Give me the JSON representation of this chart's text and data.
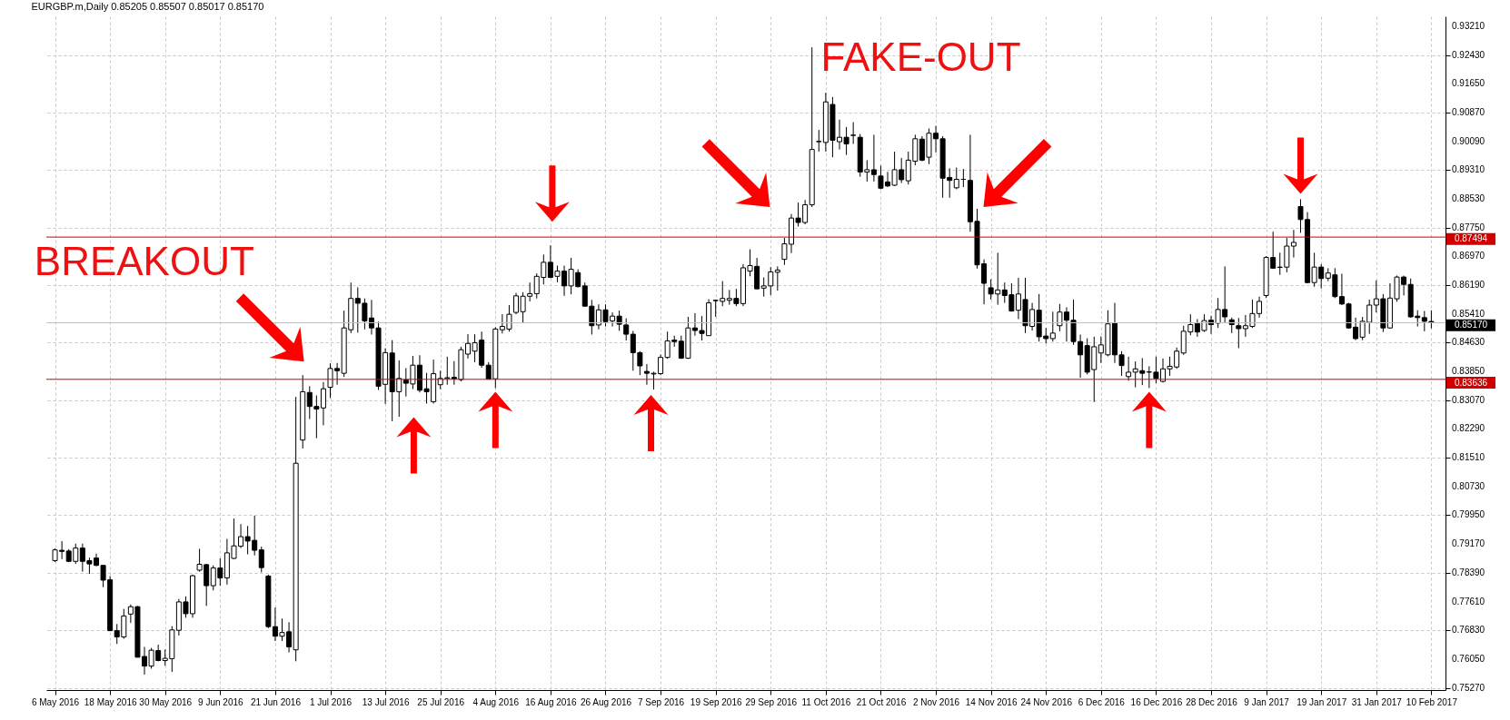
{
  "chart_data": {
    "type": "candlestick",
    "title": "EURGBP.m,Daily  0.85205 0.85507 0.85017 0.85170",
    "categories": [
      "6 May 2016",
      null,
      null,
      null,
      null,
      null,
      null,
      null,
      "18 May 2016",
      null,
      null,
      null,
      null,
      null,
      null,
      null,
      "30 May 2016",
      null,
      null,
      null,
      null,
      null,
      null,
      null,
      "9 Jun 2016",
      null,
      null,
      null,
      null,
      null,
      null,
      null,
      "21 Jun 2016",
      null,
      null,
      null,
      null,
      null,
      null,
      null,
      "1 Jul 2016",
      null,
      null,
      null,
      null,
      null,
      null,
      null,
      "13 Jul 2016",
      null,
      null,
      null,
      null,
      null,
      null,
      null,
      "25 Jul 2016",
      null,
      null,
      null,
      null,
      null,
      null,
      null,
      "4 Aug 2016",
      null,
      null,
      null,
      null,
      null,
      null,
      null,
      "16 Aug 2016",
      null,
      null,
      null,
      null,
      null,
      null,
      null,
      "26 Aug 2016",
      null,
      null,
      null,
      null,
      null,
      null,
      null,
      "7 Sep 2016",
      null,
      null,
      null,
      null,
      null,
      null,
      null,
      "19 Sep 2016",
      null,
      null,
      null,
      null,
      null,
      null,
      null,
      "29 Sep 2016",
      null,
      null,
      null,
      null,
      null,
      null,
      null,
      "11 Oct 2016",
      null,
      null,
      null,
      null,
      null,
      null,
      null,
      "21 Oct 2016",
      null,
      null,
      null,
      null,
      null,
      null,
      null,
      "2 Nov 2016",
      null,
      null,
      null,
      null,
      null,
      null,
      null,
      "14 Nov 2016",
      null,
      null,
      null,
      null,
      null,
      null,
      null,
      "24 Nov 2016",
      null,
      null,
      null,
      null,
      null,
      null,
      null,
      "6 Dec 2016",
      null,
      null,
      null,
      null,
      null,
      null,
      null,
      "16 Dec 2016",
      null,
      null,
      null,
      null,
      null,
      null,
      null,
      "28 Dec 2016",
      null,
      null,
      null,
      null,
      null,
      null,
      null,
      "9 Jan 2017",
      null,
      null,
      null,
      null,
      null,
      null,
      null,
      "19 Jan 2017",
      null,
      null,
      null,
      null,
      null,
      null,
      null,
      "31 Jan 2017",
      null,
      null,
      null,
      null,
      null,
      null,
      null,
      "10 Feb 2017"
    ],
    "ohlc": [
      [
        0.7872,
        0.7905,
        0.7868,
        0.7901
      ],
      [
        0.79,
        0.7925,
        0.7876,
        0.7897
      ],
      [
        0.7898,
        0.7903,
        0.7868,
        0.787
      ],
      [
        0.787,
        0.7918,
        0.7863,
        0.7906
      ],
      [
        0.7906,
        0.7918,
        0.7842,
        0.787
      ],
      [
        0.7872,
        0.788,
        0.7836,
        0.7863
      ],
      [
        0.7879,
        0.7891,
        0.7857,
        0.7859
      ],
      [
        0.7859,
        0.7859,
        0.78,
        0.7819
      ],
      [
        0.782,
        0.783,
        0.7681,
        0.7682
      ],
      [
        0.7682,
        0.77,
        0.7646,
        0.7665
      ],
      [
        0.7665,
        0.7741,
        0.766,
        0.7722
      ],
      [
        0.7727,
        0.7753,
        0.7703,
        0.7747
      ],
      [
        0.7747,
        0.7749,
        0.761,
        0.761
      ],
      [
        0.7612,
        0.7638,
        0.7563,
        0.7586
      ],
      [
        0.7586,
        0.7635,
        0.7579,
        0.7629
      ],
      [
        0.7628,
        0.7644,
        0.7599,
        0.7601
      ],
      [
        0.7601,
        0.7631,
        0.7587,
        0.7607
      ],
      [
        0.7606,
        0.7694,
        0.757,
        0.7684
      ],
      [
        0.7683,
        0.7768,
        0.7669,
        0.776
      ],
      [
        0.776,
        0.7775,
        0.7717,
        0.7728
      ],
      [
        0.7728,
        0.7834,
        0.7717,
        0.7831
      ],
      [
        0.7846,
        0.7904,
        0.7842,
        0.7862
      ],
      [
        0.7861,
        0.7863,
        0.7749,
        0.7804
      ],
      [
        0.7804,
        0.7859,
        0.7791,
        0.7852
      ],
      [
        0.7852,
        0.7878,
        0.7804,
        0.7825
      ],
      [
        0.7825,
        0.7931,
        0.7807,
        0.7893
      ],
      [
        0.7878,
        0.7986,
        0.7876,
        0.7912
      ],
      [
        0.7911,
        0.7971,
        0.7906,
        0.7937
      ],
      [
        0.7937,
        0.7966,
        0.7889,
        0.7925
      ],
      [
        0.7927,
        0.7994,
        0.7886,
        0.79
      ],
      [
        0.7901,
        0.791,
        0.784,
        0.7853
      ],
      [
        0.783,
        0.7834,
        0.7689,
        0.7693
      ],
      [
        0.7693,
        0.7745,
        0.7654,
        0.7667
      ],
      [
        0.7667,
        0.7715,
        0.7654,
        0.7677
      ],
      [
        0.7679,
        0.7705,
        0.7623,
        0.7638
      ],
      [
        0.763,
        0.8316,
        0.7599,
        0.8136
      ],
      [
        0.8199,
        0.8375,
        0.8176,
        0.833
      ],
      [
        0.8328,
        0.8345,
        0.8256,
        0.829
      ],
      [
        0.829,
        0.832,
        0.8204,
        0.8283
      ],
      [
        0.8286,
        0.8356,
        0.8239,
        0.8338
      ],
      [
        0.8342,
        0.8407,
        0.8313,
        0.8393
      ],
      [
        0.8393,
        0.8408,
        0.8349,
        0.8387
      ],
      [
        0.838,
        0.855,
        0.837,
        0.8503
      ],
      [
        0.8498,
        0.8626,
        0.8489,
        0.8583
      ],
      [
        0.8583,
        0.8613,
        0.849,
        0.857
      ],
      [
        0.857,
        0.8583,
        0.8499,
        0.8522
      ],
      [
        0.853,
        0.8579,
        0.8485,
        0.8503
      ],
      [
        0.8503,
        0.852,
        0.8335,
        0.8345
      ],
      [
        0.835,
        0.8448,
        0.8297,
        0.8436
      ],
      [
        0.8435,
        0.847,
        0.825,
        0.833
      ],
      [
        0.833,
        0.8415,
        0.8262,
        0.8366
      ],
      [
        0.8362,
        0.8394,
        0.8317,
        0.8353
      ],
      [
        0.8351,
        0.8427,
        0.8337,
        0.8402
      ],
      [
        0.8402,
        0.8429,
        0.8328,
        0.8334
      ],
      [
        0.8338,
        0.8381,
        0.8298,
        0.833
      ],
      [
        0.8303,
        0.8417,
        0.8298,
        0.8379
      ],
      [
        0.8349,
        0.8387,
        0.8337,
        0.8366
      ],
      [
        0.8366,
        0.8425,
        0.8349,
        0.8368
      ],
      [
        0.8369,
        0.8413,
        0.8349,
        0.8365
      ],
      [
        0.8363,
        0.8452,
        0.8358,
        0.8444
      ],
      [
        0.8432,
        0.8486,
        0.842,
        0.8461
      ],
      [
        0.844,
        0.8486,
        0.841,
        0.8463
      ],
      [
        0.847,
        0.8493,
        0.8395,
        0.8402
      ],
      [
        0.8402,
        0.841,
        0.8364,
        0.8364
      ],
      [
        0.8365,
        0.8505,
        0.834,
        0.85
      ],
      [
        0.8498,
        0.854,
        0.8488,
        0.8507
      ],
      [
        0.85,
        0.8565,
        0.8493,
        0.854
      ],
      [
        0.8545,
        0.8598,
        0.854,
        0.859
      ],
      [
        0.8547,
        0.86,
        0.8516,
        0.8589
      ],
      [
        0.8589,
        0.8626,
        0.8575,
        0.8596
      ],
      [
        0.8596,
        0.8651,
        0.8583,
        0.8643
      ],
      [
        0.864,
        0.8702,
        0.8621,
        0.8681
      ],
      [
        0.8681,
        0.8727,
        0.8638,
        0.864
      ],
      [
        0.8643,
        0.8672,
        0.8627,
        0.8657
      ],
      [
        0.8657,
        0.8672,
        0.859,
        0.8617
      ],
      [
        0.8617,
        0.8693,
        0.8594,
        0.8662
      ],
      [
        0.8653,
        0.8662,
        0.8613,
        0.8615
      ],
      [
        0.8617,
        0.8626,
        0.8561,
        0.8562
      ],
      [
        0.8562,
        0.8579,
        0.8485,
        0.8509
      ],
      [
        0.8511,
        0.8567,
        0.8499,
        0.8552
      ],
      [
        0.8552,
        0.8567,
        0.8507,
        0.852
      ],
      [
        0.8522,
        0.8545,
        0.8507,
        0.8535
      ],
      [
        0.8535,
        0.855,
        0.8495,
        0.8513
      ],
      [
        0.8511,
        0.8529,
        0.8469,
        0.8486
      ],
      [
        0.8486,
        0.8495,
        0.8387,
        0.8436
      ],
      [
        0.8436,
        0.844,
        0.8375,
        0.84
      ],
      [
        0.8385,
        0.8405,
        0.8349,
        0.838
      ],
      [
        0.8378,
        0.8384,
        0.8336,
        0.838
      ],
      [
        0.8379,
        0.8431,
        0.8375,
        0.8423
      ],
      [
        0.8423,
        0.8493,
        0.8419,
        0.8468
      ],
      [
        0.847,
        0.8482,
        0.8452,
        0.8466
      ],
      [
        0.8467,
        0.8482,
        0.8419,
        0.8421
      ],
      [
        0.8421,
        0.8533,
        0.8419,
        0.8503
      ],
      [
        0.8503,
        0.8543,
        0.8482,
        0.8496
      ],
      [
        0.8496,
        0.8535,
        0.8469,
        0.8488
      ],
      [
        0.8482,
        0.8581,
        0.8482,
        0.8571
      ],
      [
        0.8577,
        0.858,
        0.8533,
        0.8578
      ],
      [
        0.8575,
        0.863,
        0.8562,
        0.8583
      ],
      [
        0.8578,
        0.8606,
        0.8566,
        0.8583
      ],
      [
        0.8583,
        0.8609,
        0.8562,
        0.8569
      ],
      [
        0.8569,
        0.8676,
        0.8562,
        0.8666
      ],
      [
        0.8657,
        0.8716,
        0.8643,
        0.8672
      ],
      [
        0.867,
        0.8693,
        0.8609,
        0.8609
      ],
      [
        0.8611,
        0.864,
        0.8588,
        0.8617
      ],
      [
        0.8617,
        0.8668,
        0.8592,
        0.8655
      ],
      [
        0.8654,
        0.867,
        0.8604,
        0.866
      ],
      [
        0.8689,
        0.8747,
        0.8674,
        0.8731
      ],
      [
        0.873,
        0.8812,
        0.8706,
        0.8801
      ],
      [
        0.8801,
        0.8843,
        0.8778,
        0.8789
      ],
      [
        0.8789,
        0.885,
        0.8784,
        0.8837
      ],
      [
        0.8837,
        0.9264,
        0.8831,
        0.8987
      ],
      [
        0.9008,
        0.904,
        0.8981,
        0.9009
      ],
      [
        0.9006,
        0.9141,
        0.8981,
        0.9116
      ],
      [
        0.9109,
        0.9129,
        0.8966,
        0.9012
      ],
      [
        0.9008,
        0.9068,
        0.8987,
        0.902
      ],
      [
        0.902,
        0.9048,
        0.8972,
        0.9002
      ],
      [
        0.9025,
        0.9061,
        0.9002,
        0.9026
      ],
      [
        0.902,
        0.9029,
        0.8913,
        0.8926
      ],
      [
        0.8926,
        0.8958,
        0.89,
        0.8932
      ],
      [
        0.8932,
        0.9027,
        0.89,
        0.8919
      ],
      [
        0.8915,
        0.8943,
        0.8879,
        0.8882
      ],
      [
        0.8899,
        0.8926,
        0.8885,
        0.8888
      ],
      [
        0.889,
        0.8981,
        0.8888,
        0.8932
      ],
      [
        0.8932,
        0.8964,
        0.8896,
        0.8905
      ],
      [
        0.8902,
        0.8981,
        0.8892,
        0.8958
      ],
      [
        0.8955,
        0.9027,
        0.8944,
        0.9016
      ],
      [
        0.9015,
        0.9023,
        0.8955,
        0.8958
      ],
      [
        0.8966,
        0.9044,
        0.8947,
        0.9031
      ],
      [
        0.9031,
        0.9051,
        0.8979,
        0.9016
      ],
      [
        0.9016,
        0.9023,
        0.8856,
        0.8909
      ],
      [
        0.8911,
        0.8936,
        0.8856,
        0.8903
      ],
      [
        0.8883,
        0.8938,
        0.8879,
        0.8906
      ],
      [
        0.8906,
        0.8934,
        0.8885,
        0.8906
      ],
      [
        0.8903,
        0.9027,
        0.8764,
        0.8791
      ],
      [
        0.8792,
        0.8826,
        0.8664,
        0.8674
      ],
      [
        0.8677,
        0.8689,
        0.8567,
        0.8624
      ],
      [
        0.8612,
        0.8635,
        0.858,
        0.8595
      ],
      [
        0.8595,
        0.8707,
        0.8566,
        0.8606
      ],
      [
        0.8606,
        0.8626,
        0.8571,
        0.8591
      ],
      [
        0.8593,
        0.8624,
        0.8547,
        0.8549
      ],
      [
        0.8551,
        0.8639,
        0.8527,
        0.8595
      ],
      [
        0.858,
        0.8639,
        0.8489,
        0.8509
      ],
      [
        0.8507,
        0.8571,
        0.8496,
        0.8553
      ],
      [
        0.8551,
        0.8595,
        0.8466,
        0.8479
      ],
      [
        0.8481,
        0.8503,
        0.8461,
        0.8474
      ],
      [
        0.8474,
        0.8547,
        0.8466,
        0.8489
      ],
      [
        0.8509,
        0.8568,
        0.8494,
        0.8546
      ],
      [
        0.8546,
        0.8559,
        0.8466,
        0.8524
      ],
      [
        0.8524,
        0.858,
        0.8457,
        0.8466
      ],
      [
        0.8466,
        0.8485,
        0.8368,
        0.843
      ],
      [
        0.8455,
        0.8475,
        0.8377,
        0.8383
      ],
      [
        0.839,
        0.8479,
        0.8302,
        0.8452
      ],
      [
        0.8435,
        0.848,
        0.8408,
        0.8457
      ],
      [
        0.843,
        0.8551,
        0.8426,
        0.8514
      ],
      [
        0.8516,
        0.8571,
        0.8408,
        0.843
      ],
      [
        0.843,
        0.844,
        0.8373,
        0.8401
      ],
      [
        0.8371,
        0.8425,
        0.836,
        0.8383
      ],
      [
        0.8383,
        0.8412,
        0.8342,
        0.8392
      ],
      [
        0.8387,
        0.8421,
        0.8348,
        0.838
      ],
      [
        0.8383,
        0.8399,
        0.834,
        0.8384
      ],
      [
        0.8383,
        0.8425,
        0.8353,
        0.8366
      ],
      [
        0.8358,
        0.842,
        0.8355,
        0.8392
      ],
      [
        0.8392,
        0.8425,
        0.8373,
        0.8399
      ],
      [
        0.8397,
        0.845,
        0.8392,
        0.844
      ],
      [
        0.8435,
        0.8509,
        0.843,
        0.8494
      ],
      [
        0.8492,
        0.854,
        0.8483,
        0.8512
      ],
      [
        0.8515,
        0.8527,
        0.8479,
        0.8492
      ],
      [
        0.8496,
        0.854,
        0.8492,
        0.8523
      ],
      [
        0.8524,
        0.8536,
        0.8487,
        0.8512
      ],
      [
        0.8516,
        0.8584,
        0.8503,
        0.8553
      ],
      [
        0.8553,
        0.867,
        0.8516,
        0.8533
      ],
      [
        0.8525,
        0.8531,
        0.8489,
        0.8512
      ],
      [
        0.8509,
        0.853,
        0.8448,
        0.8501
      ],
      [
        0.8501,
        0.8538,
        0.8479,
        0.8509
      ],
      [
        0.8507,
        0.858,
        0.8503,
        0.8542
      ],
      [
        0.8542,
        0.8588,
        0.8531,
        0.8575
      ],
      [
        0.8591,
        0.8698,
        0.8584,
        0.8694
      ],
      [
        0.8694,
        0.8764,
        0.8663,
        0.8665
      ],
      [
        0.8667,
        0.8707,
        0.8647,
        0.8668
      ],
      [
        0.8668,
        0.8747,
        0.8654,
        0.8725
      ],
      [
        0.8725,
        0.8769,
        0.8694,
        0.8735
      ],
      [
        0.8832,
        0.8852,
        0.8761,
        0.8797
      ],
      [
        0.8797,
        0.8817,
        0.8624,
        0.8626
      ],
      [
        0.8626,
        0.8707,
        0.8615,
        0.8668
      ],
      [
        0.8668,
        0.8676,
        0.861,
        0.8637
      ],
      [
        0.8638,
        0.8665,
        0.863,
        0.8652
      ],
      [
        0.8647,
        0.8665,
        0.8584,
        0.8588
      ],
      [
        0.8588,
        0.865,
        0.8565,
        0.8568
      ],
      [
        0.8568,
        0.8571,
        0.8501,
        0.8503
      ],
      [
        0.8505,
        0.8531,
        0.847,
        0.8474
      ],
      [
        0.8478,
        0.8533,
        0.847,
        0.8521
      ],
      [
        0.8518,
        0.858,
        0.8487,
        0.8565
      ],
      [
        0.8565,
        0.8632,
        0.8545,
        0.8582
      ],
      [
        0.8582,
        0.8595,
        0.8492,
        0.8503
      ],
      [
        0.8503,
        0.8624,
        0.8501,
        0.8584
      ],
      [
        0.8582,
        0.8645,
        0.8574,
        0.8641
      ],
      [
        0.8641,
        0.8645,
        0.8591,
        0.8621
      ],
      [
        0.8621,
        0.8637,
        0.8531,
        0.8533
      ],
      [
        0.8535,
        0.8551,
        0.8507,
        0.8531
      ],
      [
        0.8531,
        0.8549,
        0.8494,
        0.8521
      ],
      [
        0.85205,
        0.85507,
        0.85017,
        0.8517
      ]
    ],
    "ylim": [
      0.7521,
      0.9348
    ],
    "yticks": [
      {
        "value": 0.9321,
        "label": "0.93210"
      },
      {
        "value": 0.9243,
        "label": "0.92430"
      },
      {
        "value": 0.9165,
        "label": "0.91650"
      },
      {
        "value": 0.9087,
        "label": "0.90870"
      },
      {
        "value": 0.9009,
        "label": "0.90090"
      },
      {
        "value": 0.8931,
        "label": "0.89310"
      },
      {
        "value": 0.8853,
        "label": "0.88530"
      },
      {
        "value": 0.8775,
        "label": "0.87750"
      },
      {
        "value": 0.8697,
        "label": "0.86970"
      },
      {
        "value": 0.8619,
        "label": "0.86190"
      },
      {
        "value": 0.8541,
        "label": "0.85410"
      },
      {
        "value": 0.8463,
        "label": "0.84630"
      },
      {
        "value": 0.8385,
        "label": "0.83850"
      },
      {
        "value": 0.8307,
        "label": "0.83070"
      },
      {
        "value": 0.8229,
        "label": "0.82290"
      },
      {
        "value": 0.8151,
        "label": "0.81510"
      },
      {
        "value": 0.8073,
        "label": "0.80730"
      },
      {
        "value": 0.7995,
        "label": "0.79950"
      },
      {
        "value": 0.7917,
        "label": "0.79170"
      },
      {
        "value": 0.7839,
        "label": "0.78390"
      },
      {
        "value": 0.7761,
        "label": "0.77610"
      },
      {
        "value": 0.7683,
        "label": "0.76830"
      },
      {
        "value": 0.7605,
        "label": "0.76050"
      },
      {
        "value": 0.7527,
        "label": "0.75270"
      }
    ],
    "ref_lines": [
      {
        "axis": "y",
        "value": 0.87494,
        "label": "0.87494",
        "color": "#d00000"
      },
      {
        "axis": "y",
        "value": 0.83636,
        "label": "0.83636",
        "color": "#d00000"
      },
      {
        "axis": "y",
        "value": 0.8517,
        "label": "0.85170",
        "color": "#c0c0c0"
      }
    ],
    "annotations": [
      "BREAKOUT",
      "FAKE-OUT"
    ],
    "grid": true
  }
}
